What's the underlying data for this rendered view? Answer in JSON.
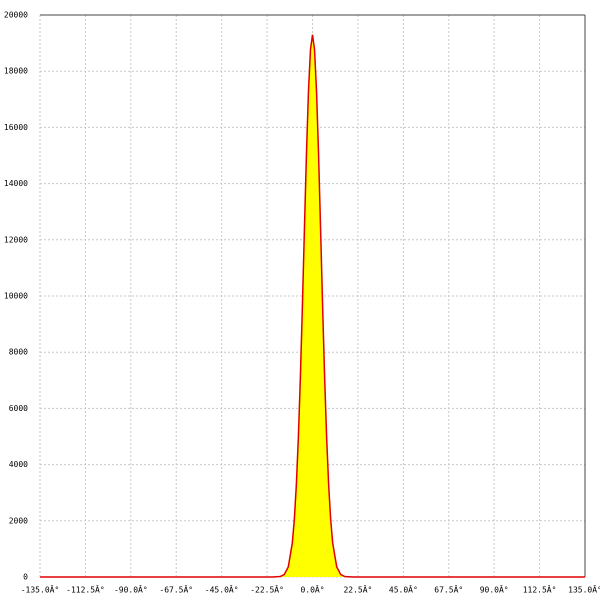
{
  "chart_data": {
    "type": "area",
    "x": [
      -135,
      -20,
      -16,
      -14,
      -12,
      -10,
      -9,
      -8,
      -7,
      -6,
      -5,
      -4,
      -3,
      -2,
      -1,
      0,
      1,
      2,
      3,
      4,
      5,
      6,
      7,
      8,
      9,
      10,
      12,
      14,
      16,
      20,
      135
    ],
    "values": [
      0,
      0,
      16,
      85,
      360,
      1210,
      2050,
      3280,
      4970,
      7120,
      9660,
      12390,
      15050,
      17280,
      18770,
      19300,
      18770,
      17280,
      15050,
      12390,
      9660,
      7120,
      4970,
      3280,
      2050,
      1210,
      360,
      85,
      16,
      0,
      0
    ],
    "color": "#e00000",
    "fill": "#ffff00",
    "xlim": [
      -135,
      135
    ],
    "xticks": [
      {
        "value": -135,
        "label": "-135.0Â°"
      },
      {
        "value": -112.5,
        "label": "-112.5Â°"
      },
      {
        "value": -90,
        "label": "-90.0Â°"
      },
      {
        "value": -67.5,
        "label": "-67.5Â°"
      },
      {
        "value": -45,
        "label": "-45.0Â°"
      },
      {
        "value": -22.5,
        "label": "-22.5Â°"
      },
      {
        "value": 0,
        "label": "0.0Â°"
      },
      {
        "value": 22.5,
        "label": "22.5Â°"
      },
      {
        "value": 45,
        "label": "45.0Â°"
      },
      {
        "value": 67.5,
        "label": "67.5Â°"
      },
      {
        "value": 90,
        "label": "90.0Â°"
      },
      {
        "value": 112.5,
        "label": "112.5Â°"
      },
      {
        "value": 135,
        "label": "135.0Â°"
      }
    ],
    "ylim": [
      0,
      20000
    ],
    "yticks": [
      0,
      2000,
      4000,
      6000,
      8000,
      10000,
      12000,
      14000,
      16000,
      18000,
      20000
    ],
    "grid": true
  }
}
